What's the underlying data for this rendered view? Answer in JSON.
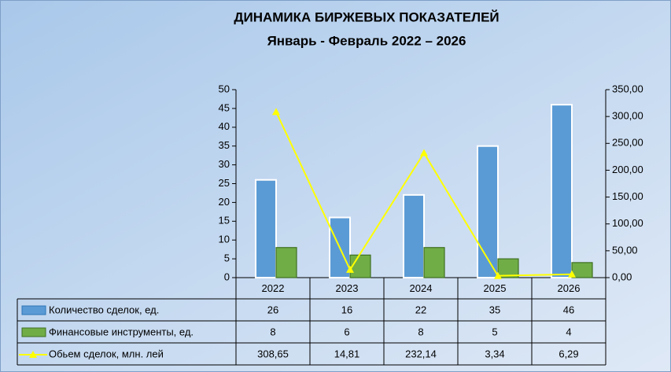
{
  "chart_data": {
    "type": "bar",
    "title": "ДИНАМИКА БИРЖЕВЫХ ПОКАЗАТЕЛЕЙ",
    "subtitle": "Январь  -  Февраль 2022 – 2026",
    "categories": [
      "2022",
      "2023",
      "2024",
      "2025",
      "2026"
    ],
    "series": [
      {
        "name": "Количество сделок, ед.",
        "type": "bar",
        "color": "#5b9bd5",
        "values": [
          26,
          16,
          22,
          35,
          46
        ]
      },
      {
        "name": "Финансовые инструменты, ед.",
        "type": "bar",
        "color": "#70ad47",
        "values": [
          8,
          6,
          8,
          5,
          4
        ]
      },
      {
        "name": "Обьем сделок, млн. лей",
        "type": "line",
        "axis": "y2",
        "color": "#ffff00",
        "values": [
          308.65,
          14.81,
          232.14,
          3.34,
          6.29
        ],
        "value_labels": [
          "308,65",
          "14,81",
          "232,14",
          "3,34",
          "6,29"
        ]
      }
    ],
    "ylim": [
      0,
      50
    ],
    "yticks": [
      0,
      5,
      10,
      15,
      20,
      25,
      30,
      35,
      40,
      45,
      50
    ],
    "y2lim": [
      0,
      350
    ],
    "y2ticks": [
      {
        "value": 0,
        "label": "0,00"
      },
      {
        "value": 50,
        "label": "50,00"
      },
      {
        "value": 100,
        "label": "100,00"
      },
      {
        "value": 150,
        "label": "150,00"
      },
      {
        "value": 200,
        "label": "200,00"
      },
      {
        "value": 250,
        "label": "250,00"
      },
      {
        "value": 300,
        "label": "300,00"
      },
      {
        "value": 350,
        "label": "350,00"
      }
    ]
  }
}
